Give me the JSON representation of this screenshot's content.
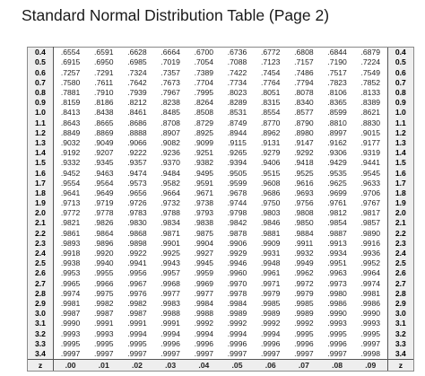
{
  "title": "Standard Normal Distribution Table (Page 2)",
  "table": {
    "corner_label": "z",
    "column_headers": [
      ".00",
      ".01",
      ".02",
      ".03",
      ".04",
      ".05",
      ".06",
      ".07",
      ".08",
      ".09"
    ],
    "rows": [
      {
        "z": "0.4",
        "values": [
          ".6554",
          ".6591",
          ".6628",
          ".6664",
          ".6700",
          ".6736",
          ".6772",
          ".6808",
          ".6844",
          ".6879"
        ]
      },
      {
        "z": "0.5",
        "values": [
          ".6915",
          ".6950",
          ".6985",
          ".7019",
          ".7054",
          ".7088",
          ".7123",
          ".7157",
          ".7190",
          ".7224"
        ]
      },
      {
        "z": "0.6",
        "values": [
          ".7257",
          ".7291",
          ".7324",
          ".7357",
          ".7389",
          ".7422",
          ".7454",
          ".7486",
          ".7517",
          ".7549"
        ]
      },
      {
        "z": "0.7",
        "values": [
          ".7580",
          ".7611",
          ".7642",
          ".7673",
          ".7704",
          ".7734",
          ".7764",
          ".7794",
          ".7823",
          ".7852"
        ]
      },
      {
        "z": "0.8",
        "values": [
          ".7881",
          ".7910",
          ".7939",
          ".7967",
          ".7995",
          ".8023",
          ".8051",
          ".8078",
          ".8106",
          ".8133"
        ]
      },
      {
        "z": "0.9",
        "values": [
          ".8159",
          ".8186",
          ".8212",
          ".8238",
          ".8264",
          ".8289",
          ".8315",
          ".8340",
          ".8365",
          ".8389"
        ]
      },
      {
        "z": "1.0",
        "values": [
          ".8413",
          ".8438",
          ".8461",
          ".8485",
          ".8508",
          ".8531",
          ".8554",
          ".8577",
          ".8599",
          ".8621"
        ]
      },
      {
        "z": "1.1",
        "values": [
          ".8643",
          ".8665",
          ".8686",
          ".8708",
          ".8729",
          ".8749",
          ".8770",
          ".8790",
          ".8810",
          ".8830"
        ]
      },
      {
        "z": "1.2",
        "values": [
          ".8849",
          ".8869",
          ".8888",
          ".8907",
          ".8925",
          ".8944",
          ".8962",
          ".8980",
          ".8997",
          ".9015"
        ]
      },
      {
        "z": "1.3",
        "values": [
          ".9032",
          ".9049",
          ".9066",
          ".9082",
          ".9099",
          ".9115",
          ".9131",
          ".9147",
          ".9162",
          ".9177"
        ]
      },
      {
        "z": "1.4",
        "values": [
          ".9192",
          ".9207",
          ".9222",
          ".9236",
          ".9251",
          ".9265",
          ".9279",
          ".9292",
          ".9306",
          ".9319"
        ]
      },
      {
        "z": "1.5",
        "values": [
          ".9332",
          ".9345",
          ".9357",
          ".9370",
          ".9382",
          ".9394",
          ".9406",
          ".9418",
          ".9429",
          ".9441"
        ]
      },
      {
        "z": "1.6",
        "values": [
          ".9452",
          ".9463",
          ".9474",
          ".9484",
          ".9495",
          ".9505",
          ".9515",
          ".9525",
          ".9535",
          ".9545"
        ]
      },
      {
        "z": "1.7",
        "values": [
          ".9554",
          ".9564",
          ".9573",
          ".9582",
          ".9591",
          ".9599",
          ".9608",
          ".9616",
          ".9625",
          ".9633"
        ]
      },
      {
        "z": "1.8",
        "values": [
          ".9641",
          ".9649",
          ".9656",
          ".9664",
          ".9671",
          ".9678",
          ".9686",
          ".9693",
          ".9699",
          ".9706"
        ]
      },
      {
        "z": "1.9",
        "values": [
          ".9713",
          ".9719",
          ".9726",
          ".9732",
          ".9738",
          ".9744",
          ".9750",
          ".9756",
          ".9761",
          ".9767"
        ]
      },
      {
        "z": "2.0",
        "values": [
          ".9772",
          ".9778",
          ".9783",
          ".9788",
          ".9793",
          ".9798",
          ".9803",
          ".9808",
          ".9812",
          ".9817"
        ]
      },
      {
        "z": "2.1",
        "values": [
          ".9821",
          ".9826",
          ".9830",
          ".9834",
          ".9838",
          ".9842",
          ".9846",
          ".9850",
          ".9854",
          ".9857"
        ]
      },
      {
        "z": "2.2",
        "values": [
          ".9861",
          ".9864",
          ".9868",
          ".9871",
          ".9875",
          ".9878",
          ".9881",
          ".9884",
          ".9887",
          ".9890"
        ]
      },
      {
        "z": "2.3",
        "values": [
          ".9893",
          ".9896",
          ".9898",
          ".9901",
          ".9904",
          ".9906",
          ".9909",
          ".9911",
          ".9913",
          ".9916"
        ]
      },
      {
        "z": "2.4",
        "values": [
          ".9918",
          ".9920",
          ".9922",
          ".9925",
          ".9927",
          ".9929",
          ".9931",
          ".9932",
          ".9934",
          ".9936"
        ]
      },
      {
        "z": "2.5",
        "values": [
          ".9938",
          ".9940",
          ".9941",
          ".9943",
          ".9945",
          ".9946",
          ".9948",
          ".9949",
          ".9951",
          ".9952"
        ]
      },
      {
        "z": "2.6",
        "values": [
          ".9953",
          ".9955",
          ".9956",
          ".9957",
          ".9959",
          ".9960",
          ".9961",
          ".9962",
          ".9963",
          ".9964"
        ]
      },
      {
        "z": "2.7",
        "values": [
          ".9965",
          ".9966",
          ".9967",
          ".9968",
          ".9969",
          ".9970",
          ".9971",
          ".9972",
          ".9973",
          ".9974"
        ]
      },
      {
        "z": "2.8",
        "values": [
          ".9974",
          ".9975",
          ".9976",
          ".9977",
          ".9977",
          ".9978",
          ".9979",
          ".9979",
          ".9980",
          ".9981"
        ]
      },
      {
        "z": "2.9",
        "values": [
          ".9981",
          ".9982",
          ".9982",
          ".9983",
          ".9984",
          ".9984",
          ".9985",
          ".9985",
          ".9986",
          ".9986"
        ]
      },
      {
        "z": "3.0",
        "values": [
          ".9987",
          ".9987",
          ".9987",
          ".9988",
          ".9988",
          ".9989",
          ".9989",
          ".9989",
          ".9990",
          ".9990"
        ]
      },
      {
        "z": "3.1",
        "values": [
          ".9990",
          ".9991",
          ".9991",
          ".9991",
          ".9992",
          ".9992",
          ".9992",
          ".9992",
          ".9993",
          ".9993"
        ]
      },
      {
        "z": "3.2",
        "values": [
          ".9993",
          ".9993",
          ".9994",
          ".9994",
          ".9994",
          ".9994",
          ".9994",
          ".9995",
          ".9995",
          ".9995"
        ]
      },
      {
        "z": "3.3",
        "values": [
          ".9995",
          ".9995",
          ".9995",
          ".9996",
          ".9996",
          ".9996",
          ".9996",
          ".9996",
          ".9996",
          ".9997"
        ]
      },
      {
        "z": "3.4",
        "values": [
          ".9997",
          ".9997",
          ".9997",
          ".9997",
          ".9997",
          ".9997",
          ".9997",
          ".9997",
          ".9997",
          ".9998"
        ]
      }
    ]
  }
}
